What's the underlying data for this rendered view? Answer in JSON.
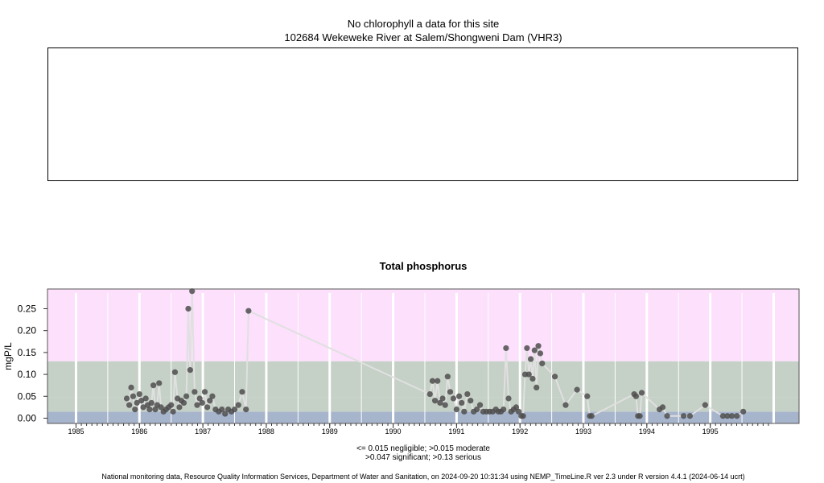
{
  "header": {
    "line1": "No chlorophyll a  data for this site",
    "line2": "102684 Wekeweke River at Salem/Shongweni Dam (VHR3)"
  },
  "chart_data": {
    "type": "scatter",
    "title": "Total phosphorus",
    "ylabel": "mgP/L",
    "xlabel": "",
    "xlim": [
      1984.55,
      1996.4
    ],
    "ylim": [
      -0.012,
      0.295
    ],
    "x_ticks": [
      1985,
      1986,
      1987,
      1988,
      1989,
      1990,
      1991,
      1992,
      1993,
      1994,
      1995
    ],
    "x_tick_labels": [
      "1985",
      "1986",
      "1987",
      "1988",
      "1989",
      "1990",
      "1991",
      "1992",
      "1993",
      "1994",
      "1995"
    ],
    "y_ticks": [
      0,
      0.05,
      0.1,
      0.15,
      0.2,
      0.25
    ],
    "y_tick_labels": [
      "0.00",
      "0.05",
      "0.10",
      "0.15",
      "0.20",
      "0.25"
    ],
    "grid": true,
    "bands": [
      {
        "name": "negligible",
        "from": -0.012,
        "to": 0.015,
        "color": "#a6b4cc"
      },
      {
        "name": "moderate",
        "from": 0.015,
        "to": 0.047,
        "color": "#c5d0c6"
      },
      {
        "name": "significant",
        "from": 0.047,
        "to": 0.13,
        "color": "#c5d0c6"
      },
      {
        "name": "serious",
        "from": 0.13,
        "to": 0.295,
        "color": "#fce0fc"
      }
    ],
    "series": [
      {
        "x": [
          1985.8,
          1985.84,
          1985.87,
          1985.9,
          1985.93,
          1985.96,
          1986.0,
          1986.03,
          1986.06,
          1986.1,
          1986.13,
          1986.16,
          1986.19,
          1986.22,
          1986.25,
          1986.28,
          1986.31,
          1986.34,
          1986.38,
          1986.42,
          1986.46,
          1986.5,
          1986.53,
          1986.56,
          1986.6,
          1986.63,
          1986.66,
          1986.7,
          1986.74,
          1986.77,
          1986.8,
          1986.83,
          1986.87,
          1986.91,
          1986.95,
          1986.99,
          1987.03,
          1987.07,
          1987.11,
          1987.15,
          1987.2,
          1987.25,
          1987.3,
          1987.35,
          1987.4,
          1987.45,
          1987.5,
          1987.56,
          1987.62,
          1987.68,
          1987.72,
          1990.58,
          1990.62,
          1990.66,
          1990.7,
          1990.74,
          1990.78,
          1990.82,
          1990.86,
          1990.9,
          1990.95,
          1991.0,
          1991.04,
          1991.08,
          1991.12,
          1991.17,
          1991.22,
          1991.27,
          1991.32,
          1991.37,
          1991.42,
          1991.47,
          1991.52,
          1991.57,
          1991.62,
          1991.66,
          1991.7,
          1991.74,
          1991.78,
          1991.82,
          1991.86,
          1991.9,
          1991.94,
          1991.98,
          1992.02,
          1992.05,
          1992.08,
          1992.11,
          1992.14,
          1992.17,
          1992.2,
          1992.23,
          1992.26,
          1992.29,
          1992.32,
          1992.35,
          1992.55,
          1992.72,
          1992.9,
          1993.06,
          1993.1,
          1993.13,
          1993.8,
          1993.83,
          1993.86,
          1993.89,
          1993.92,
          1994.2,
          1994.25,
          1994.32,
          1994.58,
          1994.68,
          1994.92,
          1995.2,
          1995.27,
          1995.34,
          1995.42,
          1995.52
        ],
        "y": [
          0.045,
          0.03,
          0.07,
          0.05,
          0.02,
          0.035,
          0.055,
          0.04,
          0.025,
          0.045,
          0.03,
          0.02,
          0.035,
          0.075,
          0.02,
          0.03,
          0.08,
          0.025,
          0.015,
          0.02,
          0.025,
          0.03,
          0.015,
          0.105,
          0.045,
          0.025,
          0.04,
          0.035,
          0.05,
          0.25,
          0.11,
          0.29,
          0.06,
          0.03,
          0.045,
          0.035,
          0.06,
          0.025,
          0.04,
          0.05,
          0.02,
          0.015,
          0.02,
          0.01,
          0.02,
          0.015,
          0.02,
          0.03,
          0.06,
          0.02,
          0.245,
          0.055,
          0.085,
          0.04,
          0.085,
          0.035,
          0.045,
          0.03,
          0.095,
          0.06,
          0.045,
          0.02,
          0.05,
          0.035,
          0.015,
          0.055,
          0.04,
          0.015,
          0.02,
          0.03,
          0.015,
          0.015,
          0.015,
          0.015,
          0.02,
          0.015,
          0.015,
          0.02,
          0.16,
          0.045,
          0.015,
          0.02,
          0.025,
          0.015,
          0.005,
          0.005,
          0.1,
          0.16,
          0.1,
          0.135,
          0.09,
          0.155,
          0.07,
          0.165,
          0.148,
          0.125,
          0.095,
          0.03,
          0.065,
          0.05,
          0.005,
          0.005,
          0.055,
          0.05,
          0.005,
          0.005,
          0.058,
          0.02,
          0.025,
          0.005,
          0.005,
          0.005,
          0.03,
          0.005,
          0.005,
          0.005,
          0.005,
          0.015
        ]
      }
    ],
    "colors": {
      "points": "#4d4d4d",
      "line": "#e0e0e0",
      "grid": "#ffffff"
    }
  },
  "legend": {
    "line1": "<= 0.015 negligible; >0.015 moderate",
    "line2": ">0.047 significant; >0.13 serious"
  },
  "footer": "National monitoring data, Resource Quality Information Services, Department of Water and Sanitation, on 2024-09-20 10:31:34 using NEMP_TimeLine.R ver 2.3 under R version 4.4.1 (2024-06-14 ucrt)"
}
